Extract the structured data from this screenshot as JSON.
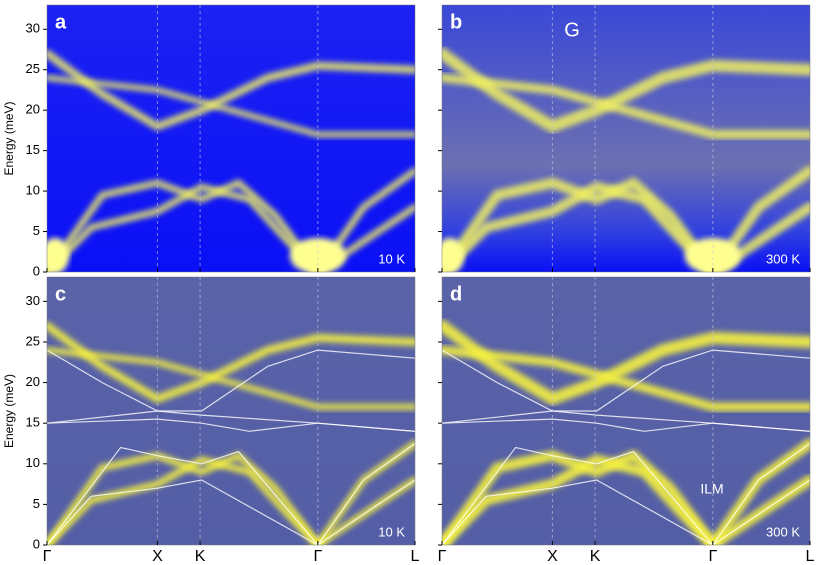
{
  "chart_data": [
    {
      "type": "heatmap",
      "label": "a",
      "annotations": [
        "10 K"
      ],
      "ylabel": "Energy (meV)",
      "ylim": [
        0,
        33
      ],
      "yticks": [
        0,
        5,
        10,
        15,
        20,
        25,
        30
      ],
      "xlim": [
        0,
        1
      ]
    },
    {
      "type": "heatmap",
      "label": "b",
      "annotations": [
        "300 K",
        "G"
      ],
      "ylim": [
        0,
        33
      ],
      "xlim": [
        0,
        1
      ]
    },
    {
      "type": "heatmap",
      "label": "c",
      "annotations": [
        "10 K"
      ],
      "ylabel": "Energy (meV)",
      "ylim": [
        0,
        33
      ],
      "yticks": [
        0,
        5,
        10,
        15,
        20,
        25,
        30
      ],
      "xlim": [
        0,
        1
      ],
      "xticks": [
        {
          "value": 0,
          "label": "Γ"
        },
        {
          "value": 0.3,
          "label": "X"
        },
        {
          "value": 0.416,
          "label": "K"
        },
        {
          "value": 0.736,
          "label": "Γ"
        },
        {
          "value": 1,
          "label": "L"
        }
      ]
    },
    {
      "type": "heatmap",
      "label": "d",
      "annotations": [
        "300 K",
        "ILM"
      ],
      "ylim": [
        0,
        33
      ],
      "xlim": [
        0,
        1
      ],
      "xticks": [
        {
          "value": 0,
          "label": "Γ"
        },
        {
          "value": 0.3,
          "label": "X"
        },
        {
          "value": 0.416,
          "label": "K"
        },
        {
          "value": 0.736,
          "label": "Γ"
        },
        {
          "value": 1,
          "label": "L"
        }
      ]
    }
  ]
}
